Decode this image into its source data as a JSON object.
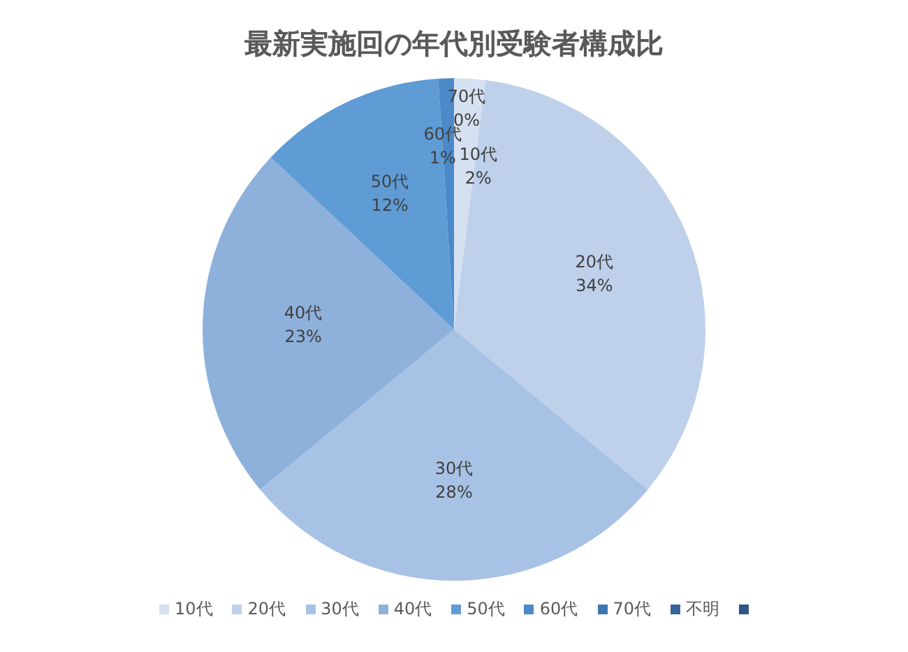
{
  "chart_data": {
    "type": "pie",
    "title": "最新実施回の年代別受験者構成比",
    "categories": [
      "10代",
      "20代",
      "30代",
      "40代",
      "50代",
      "60代",
      "70代",
      "不明",
      null
    ],
    "values": [
      2,
      34,
      28,
      23,
      12,
      1,
      0,
      0,
      0
    ],
    "colors": [
      "#d5e0f1",
      "#bed0ea",
      "#a8c2e5",
      "#8eb1dc",
      "#5f9cd6",
      "#4b89c9",
      "#3f76b2",
      "#36649b",
      "#2e5585"
    ],
    "value_labels": [
      "2%",
      "34%",
      "28%",
      "23%",
      "12%",
      "1%",
      "0%",
      null,
      null
    ],
    "legend": "bottom"
  }
}
